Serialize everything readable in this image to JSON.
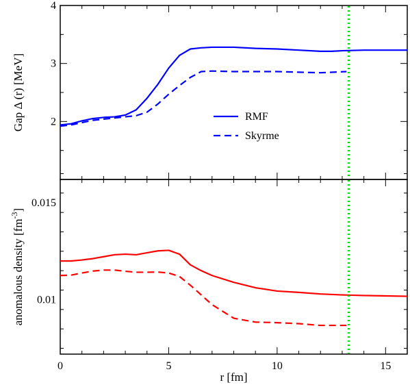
{
  "chart_data": [
    {
      "type": "line",
      "ylabel": "Gap Δ (r) [MeV]",
      "xlabel": "",
      "xlim": [
        0,
        16
      ],
      "ylim": [
        1,
        4
      ],
      "yticks": [
        "2",
        "3",
        "4"
      ],
      "ytick_values": [
        2,
        3,
        4
      ],
      "grid": false,
      "legend": "center",
      "series": [
        {
          "name": "RMF",
          "color": "#0000ff",
          "style": "solid",
          "x": [
            0,
            0.5,
            1,
            1.5,
            2,
            2.5,
            3,
            3.5,
            4,
            4.5,
            5,
            5.5,
            6,
            6.5,
            7,
            7.5,
            8,
            9,
            10,
            11,
            12,
            12.5,
            13,
            14,
            15,
            16
          ],
          "y": [
            1.94,
            1.96,
            2.01,
            2.05,
            2.07,
            2.08,
            2.11,
            2.2,
            2.4,
            2.64,
            2.92,
            3.14,
            3.25,
            3.27,
            3.28,
            3.28,
            3.28,
            3.26,
            3.25,
            3.23,
            3.21,
            3.21,
            3.22,
            3.23,
            3.23,
            3.23
          ]
        },
        {
          "name": "Skyrme",
          "color": "#0000ff",
          "style": "dashed",
          "x": [
            0,
            0.5,
            1,
            1.5,
            2,
            2.5,
            3,
            3.5,
            4,
            4.5,
            5,
            5.5,
            6,
            6.5,
            7,
            8,
            9,
            10,
            11,
            12,
            13.2
          ],
          "y": [
            1.92,
            1.94,
            1.98,
            2.02,
            2.04,
            2.06,
            2.08,
            2.1,
            2.16,
            2.3,
            2.47,
            2.62,
            2.76,
            2.86,
            2.87,
            2.86,
            2.86,
            2.86,
            2.85,
            2.84,
            2.86
          ]
        }
      ],
      "annotations": [
        {
          "type": "vline",
          "x": 13.3,
          "color": "#00dd00",
          "style": "dotted"
        }
      ]
    },
    {
      "type": "line",
      "ylabel": "anomalous density [fm",
      "ylabel_sup": "-3",
      "ylabel_end": "]",
      "xlabel": "r [fm]",
      "xlim": [
        0,
        16
      ],
      "ylim": [
        0.0072,
        0.0162
      ],
      "xticks": [
        "0",
        "5",
        "10",
        "15"
      ],
      "xtick_values": [
        0,
        5,
        10,
        15
      ],
      "yticks": [
        "0.01",
        "0.015"
      ],
      "ytick_values": [
        0.01,
        0.015
      ],
      "grid": false,
      "series": [
        {
          "name": "RMF",
          "color": "#ff0000",
          "style": "solid",
          "x": [
            0,
            0.5,
            1,
            1.5,
            2,
            2.5,
            3,
            3.5,
            4,
            4.5,
            5,
            5.5,
            6,
            6.5,
            7,
            8,
            9,
            10,
            11,
            12,
            13,
            14,
            15,
            16
          ],
          "y": [
            0.012,
            0.012,
            0.01205,
            0.01212,
            0.01222,
            0.01232,
            0.01235,
            0.01232,
            0.01242,
            0.01252,
            0.01255,
            0.01235,
            0.0118,
            0.0115,
            0.01125,
            0.0109,
            0.01062,
            0.01045,
            0.01038,
            0.0103,
            0.01025,
            0.01022,
            0.0102,
            0.01018
          ]
        },
        {
          "name": "Skyrme",
          "color": "#ff0000",
          "style": "dashed",
          "x": [
            0,
            0.5,
            1,
            1.5,
            2,
            2.5,
            3,
            3.5,
            4,
            4.5,
            5,
            5.5,
            6,
            6.5,
            7,
            8,
            9,
            10,
            11,
            12,
            13.2
          ],
          "y": [
            0.01125,
            0.01127,
            0.01138,
            0.01148,
            0.01153,
            0.01153,
            0.01147,
            0.01142,
            0.01142,
            0.01143,
            0.01138,
            0.0112,
            0.01075,
            0.01025,
            0.00975,
            0.00905,
            0.00885,
            0.00882,
            0.00877,
            0.00868,
            0.00868
          ]
        }
      ],
      "annotations": [
        {
          "type": "vline",
          "x": 13.3,
          "color": "#00dd00",
          "style": "dotted"
        }
      ]
    }
  ]
}
